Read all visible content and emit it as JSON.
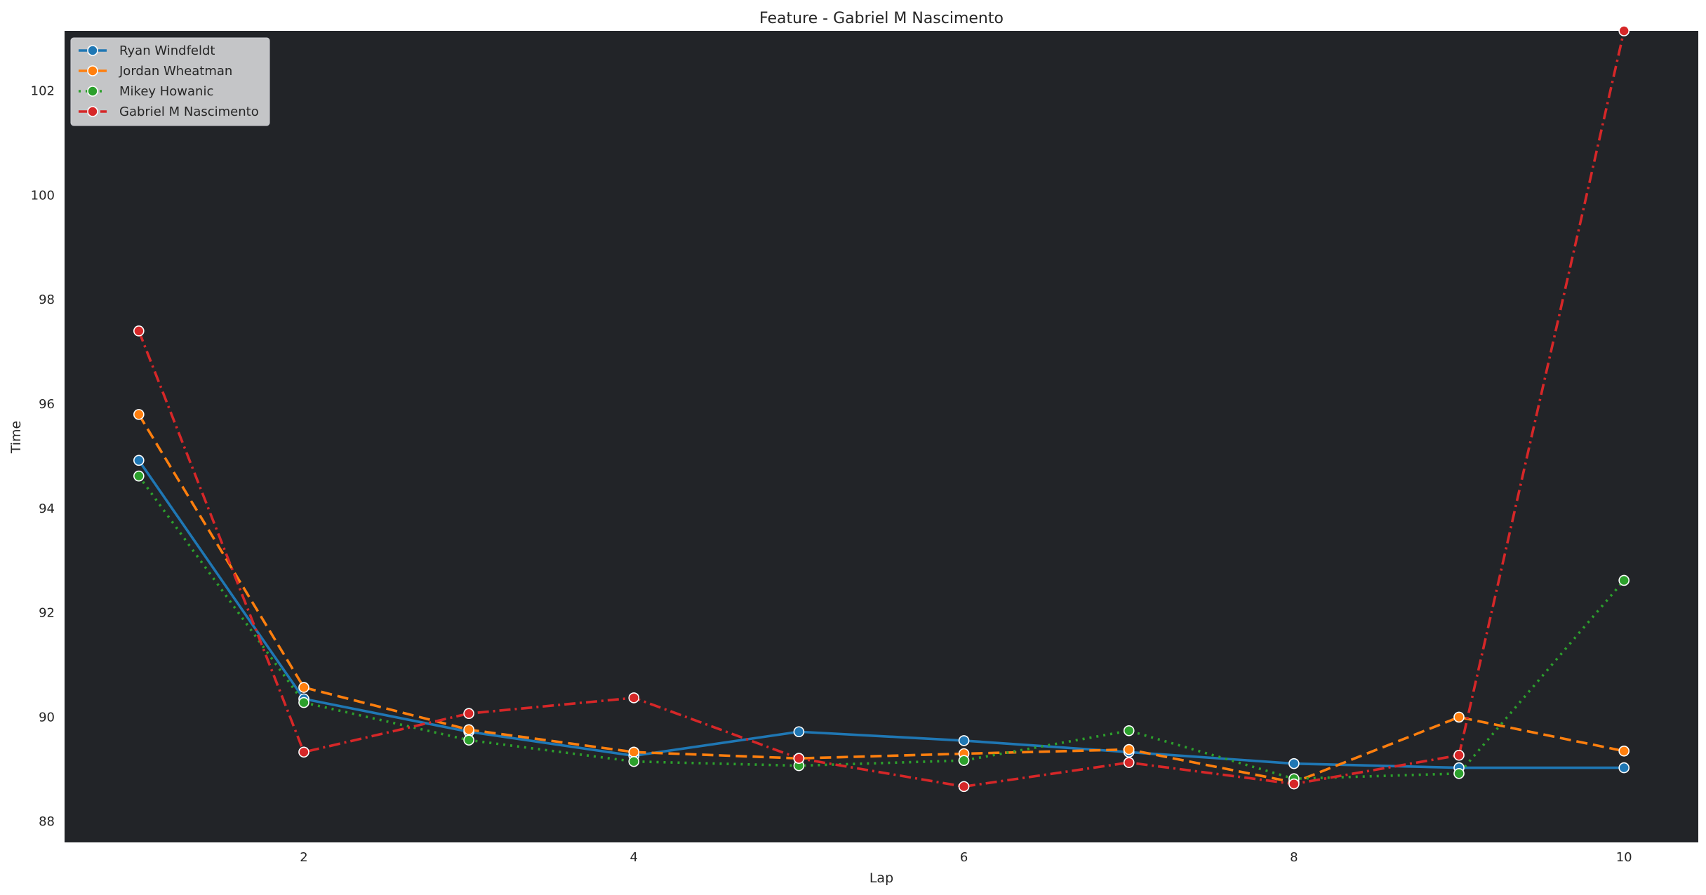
{
  "chart_data": {
    "type": "line",
    "title": "Feature - Gabriel M Nascimento",
    "xlabel": "Lap",
    "ylabel": "Time",
    "xlim": [
      0.55,
      10.45
    ],
    "ylim": [
      87.6,
      103.15
    ],
    "xticks": [
      2,
      4,
      6,
      8,
      10
    ],
    "yticks": [
      88,
      90,
      92,
      94,
      96,
      98,
      100,
      102
    ],
    "grid": false,
    "legend_position": "top-left",
    "plot_background": "#222428",
    "x": [
      1,
      2,
      3,
      4,
      5,
      6,
      7,
      8,
      9,
      10
    ],
    "series": [
      {
        "name": "Ryan Windfeldt",
        "color": "#1f77b4",
        "dash": "solid",
        "values": [
          94.92,
          90.35,
          89.72,
          89.26,
          89.72,
          89.55,
          89.33,
          89.11,
          89.03,
          89.03
        ]
      },
      {
        "name": "Jordan Wheatman",
        "color": "#ff7f0e",
        "dash": "dashed",
        "values": [
          95.8,
          90.57,
          89.76,
          89.33,
          89.21,
          89.3,
          89.38,
          88.75,
          90.0,
          89.35
        ]
      },
      {
        "name": "Mikey Howanic",
        "color": "#2ca02c",
        "dash": "dotted",
        "values": [
          94.62,
          90.28,
          89.56,
          89.15,
          89.07,
          89.17,
          89.74,
          88.82,
          88.92,
          92.62
        ]
      },
      {
        "name": "Gabriel M Nascimento",
        "color": "#d62728",
        "dash": "dashdot",
        "values": [
          97.4,
          89.33,
          90.07,
          90.37,
          89.21,
          88.67,
          89.13,
          88.72,
          89.27,
          103.15
        ]
      }
    ]
  }
}
